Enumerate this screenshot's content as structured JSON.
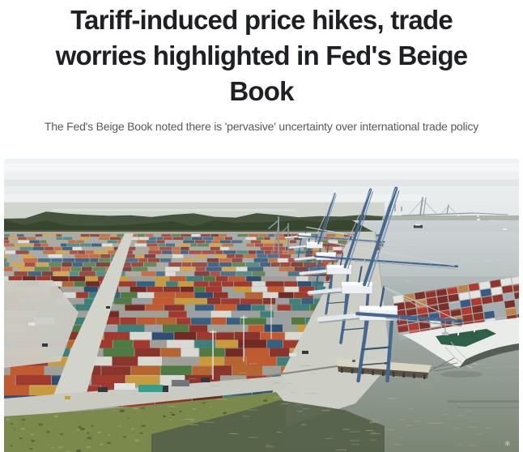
{
  "page": {
    "background": "#ffffff"
  },
  "article": {
    "headline_lines": [
      "Tariff-induced price hikes, trade",
      "worries highlighted in Fed's Beige",
      "Book"
    ],
    "subheadline": "The Fed's Beige Book noted there is 'pervasive' uncertainty over international trade policy",
    "headline_color": "#1f2023",
    "subheadline_color": "#58595b"
  },
  "photo": {
    "alt": "Aerial view of a container terminal: thousands of stacked shipping containers, a light aisle through the yard, a row of blue gantry cranes along the wharf, a berthed container ship at bottom right, a distant cable-stayed bridge over the harbor, and green marsh at bottom left",
    "watermark": "*",
    "palette": {
      "sky_top": "#f1f3f4",
      "sky_bottom": "#e1e6e8",
      "haze": "#ccd1c8",
      "far_shore": "#aeb6aa",
      "tree_back": "#46543d",
      "tree_front": "#39462f",
      "tree_soft": "#5a6848",
      "water_top": "#cbd1d4",
      "water_mid": "#a7b1b0",
      "water_bottom": "#7b8573",
      "marsh": "#7b8a4c",
      "marsh_dark": "#55633a",
      "marsh_light": "#95a45c",
      "marsh_water": "#55614a",
      "yard_ground": "#a0a098",
      "road": "#d2d3cb",
      "apron": "#cdcec6",
      "quay_edge": "#8b8778",
      "pier": "#d9d5c3",
      "pier_face": "#5a5347",
      "piling": "#3f3a31",
      "crane_blue": "#46688f",
      "crane_blue_dark": "#3a577c",
      "crane_light": "#7e97b8",
      "crane_house": "#eef1f4",
      "crane_girder": "#e3e8ec",
      "boom_shadow": "#97a3ad",
      "old_crane": "#8b95a0",
      "bridge": "#8f9aa3",
      "bridge_cable": "#aab3ba",
      "ship_hull": "#e9ece9",
      "ship_flare": "#c2c8c4",
      "ship_deck_green": "#2f5f48",
      "ship_waterline": "#4a5148",
      "boat_dark": "#3e4750",
      "boat_white": "#eef1f2",
      "sparkle": "#aab093",
      "truck_teal": "#35a08a",
      "vehicle_dark": "#34383d",
      "vehicle_white": "#dfe1e2",
      "vehicle_grey": "#70767b",
      "vehicle_yellow": "#c9a22e",
      "pole": "#e8e9e4",
      "city_mark": "#9aa3a8",
      "watermark_color": "#c6cac5"
    },
    "container_colors": [
      "#a03a2e",
      "#8a342b",
      "#6f2b24",
      "#c05a30",
      "#c99b3f",
      "#3f7f7a",
      "#37607f",
      "#2f4f72",
      "#d9d9d4",
      "#9aa0a3",
      "#4f7a44",
      "#b5652f",
      "#a03a2e",
      "#8a342b"
    ],
    "ship_container_colors": [
      "#90342c",
      "#b23a30",
      "#e3e4e0",
      "#7c2f28",
      "#a7adb0",
      "#b9834a",
      "#3a5a80"
    ]
  }
}
